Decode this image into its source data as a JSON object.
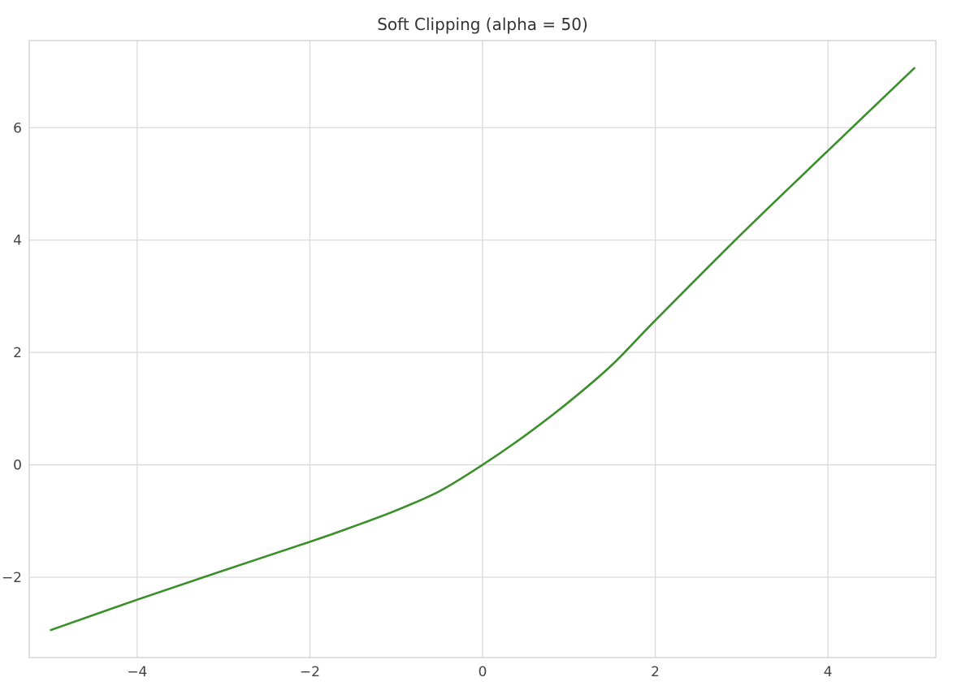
{
  "chart_data": {
    "type": "line",
    "title": "Soft Clipping (alpha = 50)",
    "xlabel": "",
    "ylabel": "",
    "xlim": [
      -5.25,
      5.25
    ],
    "ylim": [
      -3.43,
      7.55
    ],
    "xticks": [
      -4,
      -2,
      0,
      2,
      4
    ],
    "xtick_labels": [
      "−4",
      "−2",
      "0",
      "2",
      "4"
    ],
    "yticks": [
      -2,
      0,
      2,
      4,
      6
    ],
    "ytick_labels": [
      "−2",
      "0",
      "2",
      "4",
      "6"
    ],
    "grid": true,
    "legend": "none",
    "colors": {
      "line": "#3a8f2a",
      "grid": "#d9d9d9",
      "frame": "#cfcfcf",
      "text": "#444444"
    },
    "series": [
      {
        "x": [
          -5,
          -4,
          -3,
          -2,
          -1.5,
          -1,
          -0.5,
          0,
          0.5,
          1,
          1.5,
          2,
          3,
          4,
          5
        ],
        "y": [
          -2.94,
          -2.4,
          -1.88,
          -1.37,
          -1.1,
          -0.81,
          -0.47,
          0.0,
          0.53,
          1.12,
          1.78,
          2.57,
          4.11,
          5.59,
          7.06
        ]
      }
    ]
  }
}
